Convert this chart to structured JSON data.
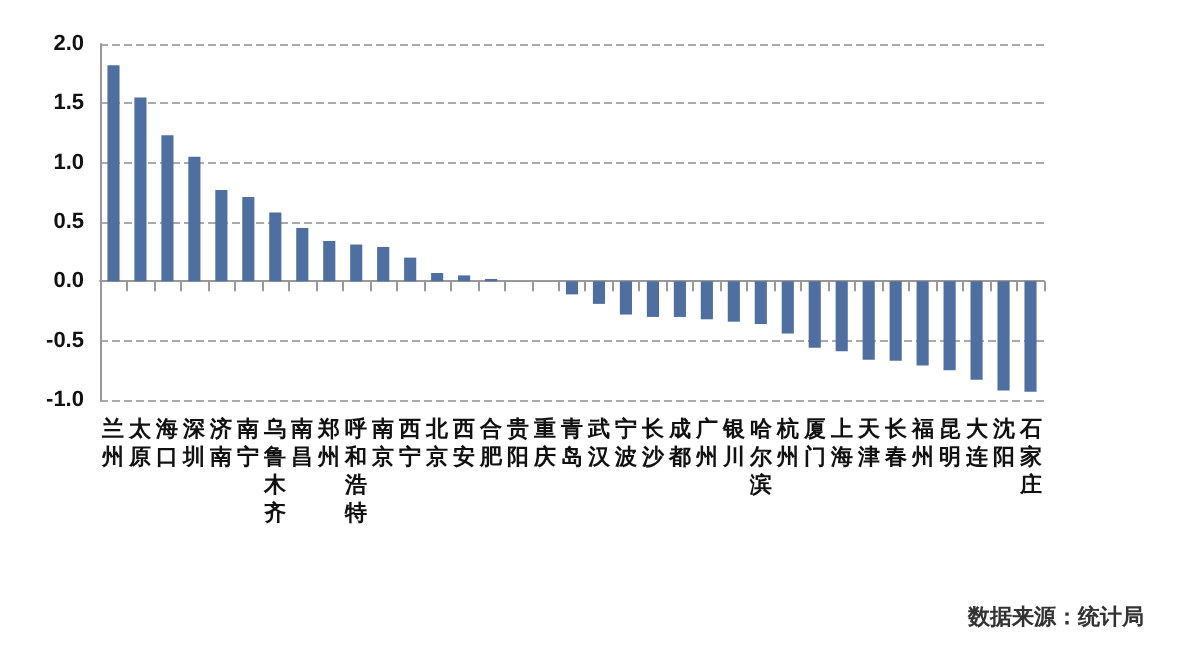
{
  "chart_data": {
    "type": "bar",
    "categories": [
      "兰州",
      "太原",
      "海口",
      "深圳",
      "济南",
      "南宁",
      "乌鲁木齐",
      "南昌",
      "郑州",
      "呼和浩特",
      "南京",
      "西宁",
      "北京",
      "西安",
      "合肥",
      "贵阳",
      "重庆",
      "青岛",
      "武汉",
      "宁波",
      "长沙",
      "成都",
      "广州",
      "银川",
      "哈尔滨",
      "杭州",
      "厦门",
      "上海",
      "天津",
      "长春",
      "福州",
      "昆明",
      "大连",
      "沈阳",
      "石家庄"
    ],
    "values": [
      1.82,
      1.55,
      1.23,
      1.05,
      0.77,
      0.71,
      0.58,
      0.45,
      0.34,
      0.31,
      0.29,
      0.2,
      0.07,
      0.05,
      0.02,
      0,
      0,
      -0.11,
      -0.19,
      -0.28,
      -0.3,
      -0.3,
      -0.32,
      -0.34,
      -0.36,
      -0.44,
      -0.56,
      -0.59,
      -0.66,
      -0.67,
      -0.71,
      -0.75,
      -0.83,
      -0.92,
      -0.93
    ],
    "color": "#4f6fa0",
    "ylim": [
      -1,
      2
    ],
    "yticks": [
      {
        "value": -1,
        "label": "-1.0"
      },
      -0.5,
      {
        "value": 0,
        "label": "0.0"
      },
      0.5,
      {
        "value": 1,
        "label": "1.0"
      },
      1.5,
      {
        "value": 2,
        "label": "2.0"
      }
    ],
    "grid": "y",
    "annotations": [
      "数据来源：统计局"
    ]
  }
}
